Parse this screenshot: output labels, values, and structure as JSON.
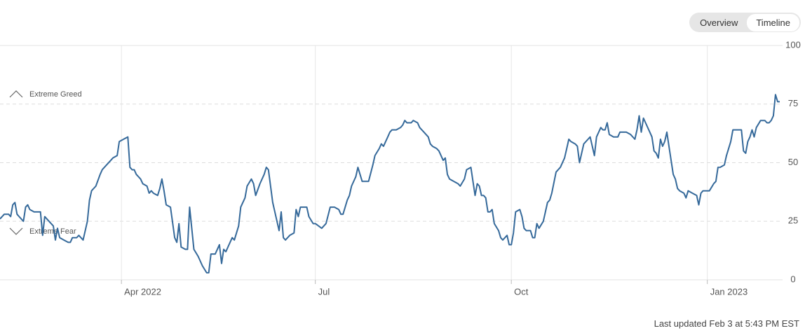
{
  "toggle": {
    "options": [
      "Overview",
      "Timeline"
    ],
    "selected": 1
  },
  "chart_data": {
    "type": "line",
    "annotations": [
      "Extreme Greed",
      "Extreme Fear"
    ],
    "x": [
      0,
      2,
      4,
      5,
      6,
      7,
      8,
      9,
      11,
      12,
      13,
      14,
      16,
      19,
      20,
      21,
      22,
      24,
      25,
      26,
      27,
      28,
      30,
      32,
      33,
      34,
      36,
      37,
      39,
      41,
      42,
      43,
      45,
      47,
      48,
      50,
      52,
      53,
      55,
      56,
      58,
      60,
      61,
      62,
      63,
      64,
      66,
      67,
      69,
      70,
      71,
      72,
      74,
      75,
      76,
      77,
      78,
      80,
      82,
      83,
      84,
      85,
      87,
      88,
      89,
      91,
      93,
      95,
      97,
      98,
      99,
      101,
      103,
      104,
      105,
      106,
      108,
      109,
      110,
      112,
      113,
      115,
      116,
      118,
      119,
      120,
      122,
      124,
      125,
      126,
      128,
      130,
      131,
      132,
      133,
      134,
      136,
      138,
      139,
      140,
      141,
      144,
      145,
      147,
      148,
      151,
      153,
      155,
      157,
      159,
      160,
      161,
      163,
      164,
      165,
      167,
      168,
      170,
      171,
      173,
      175,
      176,
      178,
      179,
      180,
      182,
      183,
      184,
      186,
      188,
      189,
      190,
      191,
      193,
      194,
      196,
      197,
      199,
      201,
      202,
      203,
      205,
      206,
      208,
      209,
      210,
      211,
      213,
      215,
      216,
      218,
      219,
      221,
      222,
      223,
      224,
      225,
      226,
      227,
      228,
      229,
      230,
      231,
      232,
      234,
      235,
      236,
      238,
      239,
      240,
      241,
      242,
      244,
      245,
      246,
      247,
      249,
      250,
      251,
      252,
      253,
      255,
      256,
      257,
      258,
      259,
      261,
      262,
      263,
      265,
      266,
      267,
      268,
      270,
      271,
      272,
      274,
      276,
      277,
      279,
      280,
      282,
      283,
      284,
      285,
      286,
      288,
      290,
      291,
      293,
      294,
      296,
      298,
      299,
      300,
      301,
      302,
      303,
      305,
      306,
      307,
      308,
      309,
      310,
      311,
      312,
      313,
      314,
      316,
      317,
      318,
      319,
      321,
      322,
      323,
      325,
      327,
      328,
      329,
      330,
      333,
      335,
      336,
      337,
      338,
      340,
      341,
      343,
      344,
      348,
      349,
      350,
      351,
      352,
      353,
      354,
      355,
      357,
      359,
      360,
      361,
      362,
      363,
      364,
      365,
      366
    ],
    "values": [
      26,
      28,
      28,
      27,
      32,
      33,
      28,
      27,
      25,
      31,
      32,
      30,
      29,
      29,
      19,
      27,
      26,
      24,
      23,
      17,
      22,
      18,
      17,
      16,
      16,
      18,
      18,
      19,
      17,
      25,
      34,
      38,
      40,
      45,
      47,
      49,
      51,
      52,
      53,
      59,
      60,
      61,
      48,
      47,
      47,
      45,
      43,
      41,
      40,
      37,
      38,
      37,
      36,
      39,
      43,
      38,
      32,
      31,
      18,
      16,
      24,
      14,
      13,
      13,
      31,
      13,
      10,
      6,
      3,
      3,
      11,
      11,
      15,
      7,
      13,
      12,
      16,
      18,
      17,
      23,
      31,
      35,
      40,
      43,
      41,
      36,
      41,
      45,
      48,
      47,
      33,
      25,
      21,
      29,
      18,
      17,
      19,
      20,
      30,
      27,
      31,
      31,
      27,
      24,
      24,
      22,
      24,
      31,
      31,
      30,
      28,
      28,
      34,
      36,
      40,
      44,
      48,
      42,
      42,
      42,
      49,
      53,
      56,
      58,
      57,
      61,
      63,
      64,
      64,
      65,
      66,
      68,
      67,
      67,
      68,
      67,
      65,
      63,
      61,
      58,
      57,
      56,
      55,
      51,
      52,
      45,
      43,
      42,
      41,
      40,
      43,
      47,
      48,
      42,
      36,
      41,
      40,
      36,
      36,
      35,
      29,
      29,
      30,
      24,
      21,
      18,
      17,
      19,
      15,
      15,
      20,
      29,
      30,
      27,
      22,
      21,
      21,
      18,
      18,
      24,
      22,
      25,
      29,
      33,
      34,
      37,
      46,
      47,
      48,
      52,
      56,
      60,
      59,
      58,
      57,
      50,
      58,
      60,
      61,
      53,
      61,
      65,
      64,
      64,
      67,
      62,
      61,
      61,
      63,
      63,
      63,
      62,
      60,
      64,
      70,
      63,
      69,
      67,
      63,
      61,
      55,
      54,
      52,
      60,
      57,
      59,
      63,
      57,
      45,
      43,
      39,
      38,
      37,
      35,
      38,
      37,
      36,
      32,
      37,
      38,
      38,
      41,
      42,
      48,
      48,
      49,
      53,
      59,
      64,
      64,
      55,
      54,
      59,
      61,
      64,
      61,
      65,
      68,
      68,
      67,
      67,
      68,
      70,
      79,
      76,
      76
    ],
    "color": "#35699a",
    "xlim": [
      0,
      366
    ],
    "xticks": [
      {
        "value": 57,
        "label": "Apr 2022"
      },
      {
        "value": 148,
        "label": "Jul"
      },
      {
        "value": 240,
        "label": "Oct"
      },
      {
        "value": 332,
        "label": "Jan 2023"
      }
    ],
    "ylim": [
      0,
      100
    ],
    "yticks": [
      0,
      25,
      50,
      75,
      100
    ],
    "grid": true
  },
  "footer": "Last updated Feb 3 at 5:43 PM EST"
}
